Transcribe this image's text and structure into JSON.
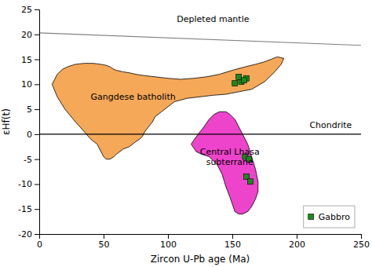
{
  "chart_data": {
    "type": "scatter",
    "x_label": "Zircon U-Pb age (Ma)",
    "y_label": "εHf(t)",
    "xlim": [
      0,
      250
    ],
    "ylim": [
      -20,
      25
    ],
    "xticks": [
      0,
      50,
      100,
      150,
      200,
      250
    ],
    "yticks": [
      -20,
      -15,
      -10,
      -5,
      0,
      5,
      10,
      15,
      20,
      25
    ],
    "grid": false,
    "legend": "lower right",
    "series": [
      {
        "type": "area",
        "color": "#F5A857",
        "x": [
          10,
          12,
          14,
          18,
          22,
          28,
          35,
          42,
          48,
          52,
          55,
          58,
          60,
          65,
          70,
          75,
          80,
          90,
          100,
          110,
          120,
          130,
          140,
          150,
          160,
          168,
          175,
          180,
          185,
          190,
          188,
          183,
          175,
          165,
          155,
          145,
          135,
          125,
          115,
          105,
          100,
          95,
          90,
          88,
          85,
          82,
          80,
          78,
          75,
          70,
          65,
          60,
          58,
          55,
          52,
          50,
          48,
          45,
          40,
          35,
          28,
          20,
          14,
          10
        ],
        "values": [
          10,
          11,
          12,
          13,
          13.5,
          14,
          14.2,
          14.2,
          14,
          13.8,
          13.5,
          13,
          12.8,
          12.5,
          12.3,
          12.0,
          11.8,
          11.5,
          11.2,
          11.0,
          11.2,
          11.5,
          12.0,
          12.8,
          13.5,
          14.0,
          14.5,
          15.0,
          15.5,
          15.2,
          14.0,
          12.5,
          10.5,
          9.0,
          8.5,
          8.0,
          7.8,
          7.5,
          7.2,
          6.5,
          5.5,
          4.5,
          3.5,
          2.5,
          1.5,
          0.5,
          -0.5,
          -1.0,
          -1.5,
          -2.5,
          -3.0,
          -4.0,
          -4.5,
          -5.0,
          -5.0,
          -4.5,
          -3.5,
          -2.0,
          -1.0,
          0.5,
          2.5,
          5.0,
          7.5,
          10
        ]
      },
      {
        "type": "area",
        "color": "#EE44CC",
        "x": [
          118,
          122,
          125,
          128,
          132,
          136,
          140,
          145,
          148,
          152,
          155,
          158,
          162,
          165,
          168,
          170,
          170,
          168,
          165,
          162,
          158,
          155,
          152,
          150,
          148,
          145,
          142,
          138,
          132,
          126,
          122,
          118
        ],
        "values": [
          -2.0,
          -0.5,
          0.5,
          1.5,
          3.0,
          4.0,
          4.5,
          4.5,
          4.0,
          3.0,
          1.5,
          0.0,
          -2.0,
          -4.5,
          -7.0,
          -9.5,
          -11.5,
          -13.0,
          -14.5,
          -15.5,
          -16.0,
          -16.0,
          -15.5,
          -14.0,
          -12.5,
          -10.5,
          -8.0,
          -6.0,
          -4.5,
          -4.0,
          -3.5,
          -2.0
        ]
      },
      {
        "type": "line",
        "color": "gray",
        "x": [
          0,
          250
        ],
        "values": [
          20.3,
          17.8
        ]
      },
      {
        "type": "line",
        "color": "black",
        "x": [
          0,
          250
        ],
        "values": [
          0,
          0
        ]
      },
      {
        "name": "Gabbro",
        "type": "scatter",
        "marker": "square",
        "color": "#1a8a1a",
        "x": [
          152,
          157,
          155,
          161,
          159,
          160,
          163,
          161,
          164
        ],
        "values": [
          10.2,
          10.5,
          11.5,
          11.2,
          10.8,
          -4.5,
          -5.0,
          -8.5,
          -9.5
        ]
      }
    ],
    "annotations": [
      {
        "text": "Depleted mantle",
        "x": 135,
        "y": 22.0
      },
      {
        "text": "Chondrite",
        "x": 210,
        "y": 0.8
      },
      {
        "text": "Gangdese batholith",
        "x": 40,
        "y": 7.5
      },
      {
        "text": "Central Lhasa\nsubterrane",
        "x": 148,
        "y": -4.5
      }
    ]
  }
}
